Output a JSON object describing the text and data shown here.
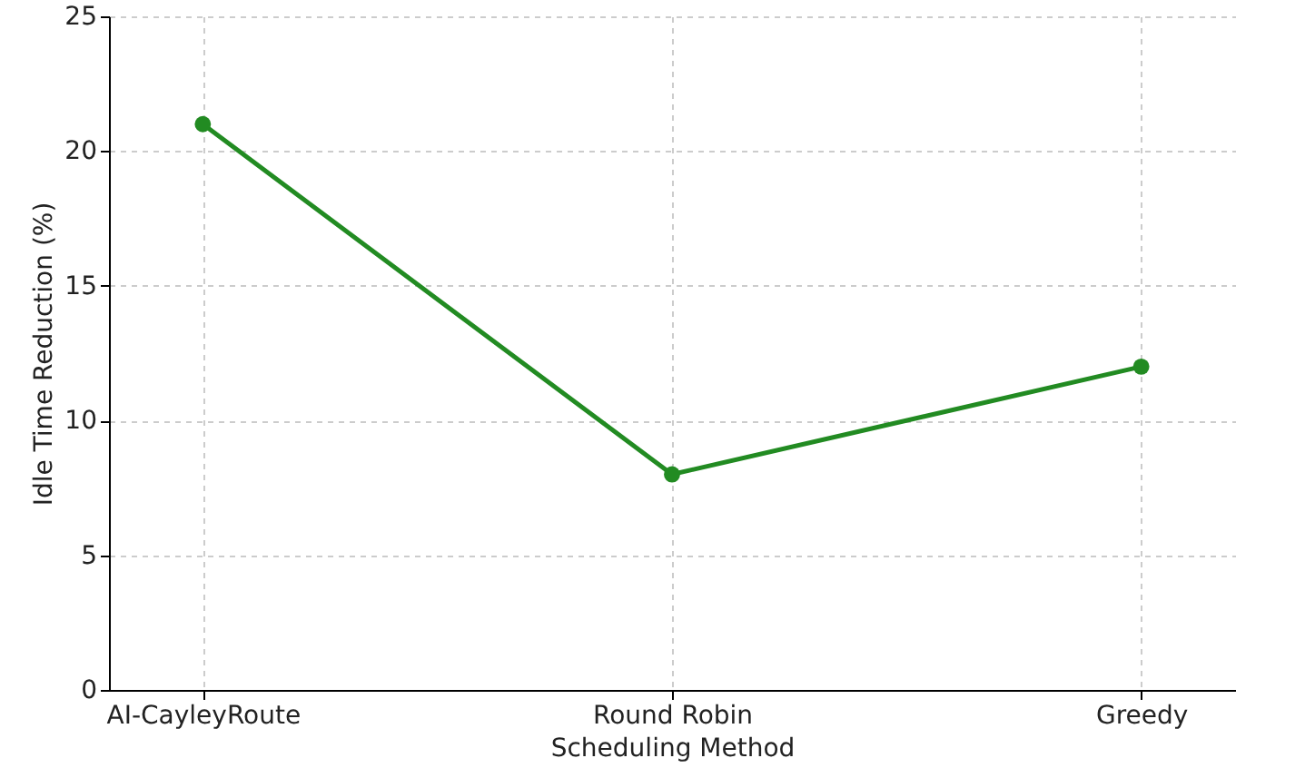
{
  "chart_data": {
    "type": "line",
    "xlabel": "Scheduling Method",
    "ylabel": "Idle Time Reduction (%)",
    "categories": [
      "AI-CayleyRoute",
      "Round Robin",
      "Greedy"
    ],
    "series": [
      {
        "color": "#228b22",
        "values": [
          21,
          8,
          12
        ]
      }
    ],
    "ylim": [
      0,
      25
    ],
    "yticks": [
      0,
      5,
      10,
      15,
      20,
      25
    ],
    "grid": true,
    "marker": "circle",
    "line_style": "solid"
  }
}
